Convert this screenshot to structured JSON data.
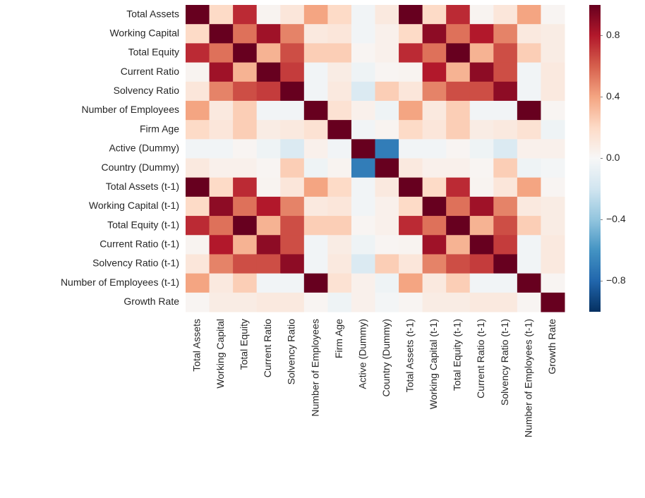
{
  "chart_data": {
    "type": "heatmap",
    "categories": [
      "Total Assets",
      "Working Capital",
      "Total Equity",
      "Current Ratio",
      "Solvency Ratio",
      "Number of Employees",
      "Firm Age",
      "Active (Dummy)",
      "Country (Dummy)",
      "Total Assets (t-1)",
      "Working Capital (t-1)",
      "Total Equity (t-1)",
      "Current Ratio (t-1)",
      "Solvency Ratio (t-1)",
      "Number of Employees (t-1)",
      "Growth Rate"
    ],
    "values": [
      [
        1,
        0.2,
        0.75,
        0.03,
        0.12,
        0.4,
        0.2,
        -0.03,
        0.1,
        1,
        0.2,
        0.75,
        0.03,
        0.12,
        0.4,
        0.02
      ],
      [
        0.2,
        1,
        0.55,
        0.85,
        0.5,
        0.1,
        0.12,
        -0.03,
        0.05,
        0.2,
        0.9,
        0.55,
        0.8,
        0.5,
        0.1,
        0.08
      ],
      [
        0.75,
        0.55,
        1,
        0.35,
        0.65,
        0.25,
        0.25,
        0.02,
        0.05,
        0.75,
        0.55,
        1,
        0.35,
        0.65,
        0.25,
        0.08
      ],
      [
        0.03,
        0.85,
        0.35,
        1,
        0.7,
        -0.03,
        0.08,
        -0.05,
        0.02,
        0.03,
        0.8,
        0.35,
        0.9,
        0.65,
        -0.03,
        0.1
      ],
      [
        0.12,
        0.5,
        0.65,
        0.7,
        1,
        -0.03,
        0.1,
        -0.15,
        0.25,
        0.12,
        0.5,
        0.65,
        0.65,
        0.9,
        -0.03,
        0.1
      ],
      [
        0.4,
        0.1,
        0.25,
        -0.03,
        -0.03,
        1,
        0.15,
        0.05,
        -0.05,
        0.4,
        0.1,
        0.25,
        -0.03,
        -0.03,
        1,
        0.02
      ],
      [
        0.2,
        0.12,
        0.25,
        0.08,
        0.1,
        0.15,
        1,
        -0.03,
        0.03,
        0.2,
        0.12,
        0.25,
        0.08,
        0.1,
        0.15,
        -0.05
      ],
      [
        -0.03,
        -0.03,
        0.02,
        -0.05,
        -0.15,
        0.05,
        -0.03,
        1,
        -0.7,
        -0.03,
        -0.03,
        0.02,
        -0.05,
        -0.15,
        0.05,
        0.05
      ],
      [
        0.1,
        0.05,
        0.05,
        0.02,
        0.25,
        -0.05,
        0.03,
        -0.7,
        1,
        0.1,
        0.05,
        0.05,
        0.02,
        0.25,
        -0.05,
        -0.02
      ],
      [
        1,
        0.2,
        0.75,
        0.03,
        0.12,
        0.4,
        0.2,
        -0.03,
        0.1,
        1,
        0.2,
        0.75,
        0.03,
        0.12,
        0.4,
        0.02
      ],
      [
        0.2,
        0.9,
        0.55,
        0.8,
        0.5,
        0.1,
        0.12,
        -0.03,
        0.05,
        0.2,
        1,
        0.55,
        0.85,
        0.5,
        0.1,
        0.08
      ],
      [
        0.75,
        0.55,
        1,
        0.35,
        0.65,
        0.25,
        0.25,
        0.02,
        0.05,
        0.75,
        0.55,
        1,
        0.35,
        0.65,
        0.25,
        0.08
      ],
      [
        0.03,
        0.8,
        0.35,
        0.9,
        0.65,
        -0.03,
        0.08,
        -0.05,
        0.02,
        0.03,
        0.85,
        0.35,
        1,
        0.7,
        -0.03,
        0.1
      ],
      [
        0.12,
        0.5,
        0.65,
        0.65,
        0.9,
        -0.03,
        0.1,
        -0.15,
        0.25,
        0.12,
        0.5,
        0.65,
        0.7,
        1,
        -0.03,
        0.1
      ],
      [
        0.4,
        0.1,
        0.25,
        -0.03,
        -0.03,
        1,
        0.15,
        0.05,
        -0.05,
        0.4,
        0.1,
        0.25,
        -0.03,
        -0.03,
        1,
        0.02
      ],
      [
        0.02,
        0.08,
        0.08,
        0.1,
        0.1,
        0.02,
        -0.05,
        0.05,
        -0.02,
        0.02,
        0.08,
        0.08,
        0.1,
        0.1,
        0.02,
        1
      ]
    ],
    "clim": [
      -1,
      1
    ],
    "cticks": [
      {
        "value": -0.8,
        "label": "−0.8"
      },
      {
        "value": -0.4,
        "label": "−0.4"
      },
      {
        "value": 0,
        "label": "0.0"
      },
      0.4,
      0.8
    ],
    "colorscale": [
      "#053061",
      "#2166ac",
      "#4393c3",
      "#92c5de",
      "#d1e5f0",
      "#f7f7f7",
      "#fddbc7",
      "#f4a582",
      "#d6604d",
      "#b2182b",
      "#67001f"
    ]
  }
}
